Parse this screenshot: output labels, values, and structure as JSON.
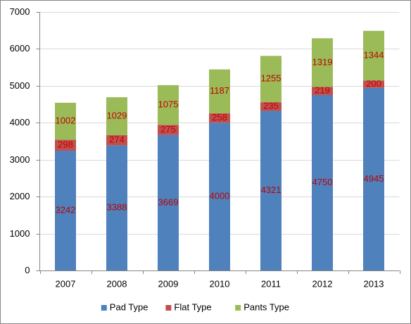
{
  "chart_data": {
    "type": "stacked_bar",
    "categories": [
      "2007",
      "2008",
      "2009",
      "2010",
      "2011",
      "2012",
      "2013"
    ],
    "series": [
      {
        "name": "Pad Type",
        "color": "#4f81bd",
        "values": [
          3242,
          3388,
          3669,
          4000,
          4321,
          4750,
          4945
        ]
      },
      {
        "name": "Flat Type",
        "color": "#c0504d",
        "values": [
          298,
          274,
          275,
          258,
          235,
          219,
          200
        ]
      },
      {
        "name": "Pants Type",
        "color": "#9bbb59",
        "values": [
          1002,
          1029,
          1075,
          1187,
          1255,
          1319,
          1344
        ]
      }
    ],
    "ylim": [
      0,
      7000
    ],
    "yticks": [
      0,
      1000,
      2000,
      3000,
      4000,
      5000,
      6000,
      7000
    ],
    "grid": true,
    "legend": "bottom",
    "value_label_color": "#c00000"
  }
}
